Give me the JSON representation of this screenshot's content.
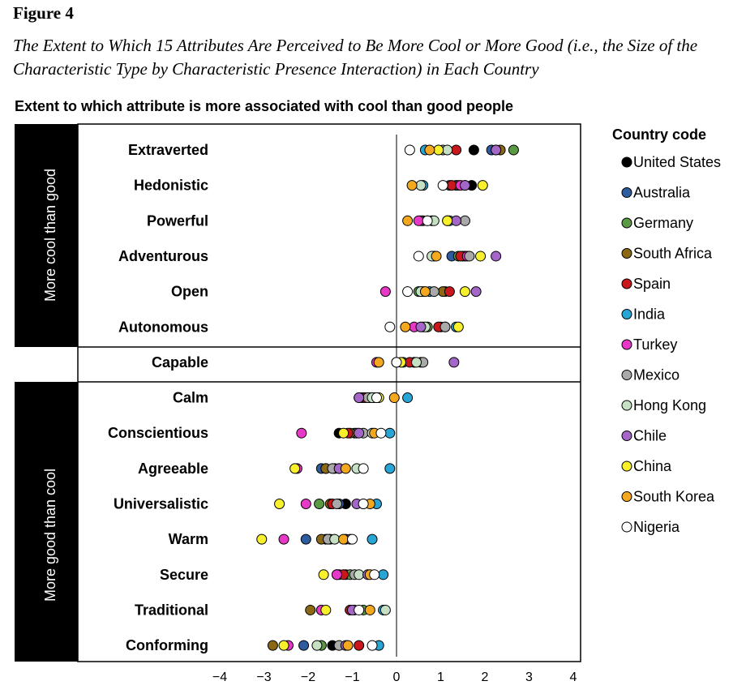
{
  "figure": {
    "label": "Figure 4",
    "caption": "The Extent to Which 15 Attributes Are Perceived to Be More Cool or More Good (i.e., the Size of the Characteristic Type by Characteristic Presence Interaction) in Each Country"
  },
  "chart_data": {
    "type": "scatter",
    "title": "Extent to which attribute is more associated with cool than good people",
    "xlim": [
      -4,
      4
    ],
    "x_ticks": [
      "−4",
      "−3",
      "−2",
      "−1",
      "0",
      "1",
      "2",
      "3",
      "4"
    ],
    "x_tick_values": [
      -4,
      -3,
      -2,
      -1,
      0,
      1,
      2,
      3,
      4
    ],
    "group_labels": [
      "More cool  than good",
      "More good than cool"
    ],
    "categories": [
      "Extraverted",
      "Hedonistic",
      "Powerful",
      "Adventurous",
      "Open",
      "Autonomous",
      "Capable",
      "Calm",
      "Conscientious",
      "Agreeable",
      "Universalistic",
      "Warm",
      "Secure",
      "Traditional",
      "Conforming"
    ],
    "legend_title": "Country code",
    "legend_position": "right",
    "series": [
      {
        "name": "United States",
        "color": "#000000",
        "values": [
          1.75,
          1.7,
          0.7,
          1.55,
          1.1,
          1.0,
          0.0,
          -0.5,
          -1.3,
          -1.3,
          -1.15,
          -1.6,
          -1.3,
          -1.7,
          -1.45
        ]
      },
      {
        "name": "Australia",
        "color": "#2e5c9e",
        "values": [
          2.15,
          1.2,
          0.6,
          1.25,
          0.6,
          1.1,
          0.4,
          -0.8,
          -0.95,
          -1.7,
          -1.3,
          -2.05,
          -1.15,
          -1.05,
          -2.1
        ]
      },
      {
        "name": "Germany",
        "color": "#5b9a44",
        "values": [
          2.65,
          1.35,
          0.8,
          1.4,
          0.5,
          0.7,
          0.4,
          -0.6,
          -0.9,
          -1.6,
          -1.75,
          -1.5,
          -1.05,
          -0.75,
          -1.7
        ]
      },
      {
        "name": "South Africa",
        "color": "#8b6914",
        "values": [
          2.35,
          1.4,
          0.55,
          1.5,
          1.05,
          0.6,
          0.15,
          -0.75,
          -1.05,
          -1.6,
          -1.5,
          -1.7,
          -1.35,
          -1.95,
          -2.8
        ]
      },
      {
        "name": "Spain",
        "color": "#c8171d",
        "values": [
          1.35,
          1.25,
          1.15,
          1.45,
          1.2,
          0.95,
          0.3,
          -0.7,
          -1.1,
          -1.4,
          -1.45,
          -1.15,
          -1.2,
          -1.05,
          -0.85
        ]
      },
      {
        "name": "India",
        "color": "#27a6d6",
        "values": [
          0.65,
          0.6,
          1.2,
          0.85,
          0.75,
          1.35,
          0.55,
          0.25,
          -0.15,
          -0.15,
          -0.45,
          -0.55,
          -0.3,
          -0.3,
          -0.4
        ]
      },
      {
        "name": "Turkey",
        "color": "#e838c8",
        "values": [
          2.25,
          1.45,
          0.5,
          1.6,
          -0.25,
          0.4,
          -0.45,
          -0.85,
          -2.15,
          -2.25,
          -2.05,
          -2.55,
          -1.35,
          -1.7,
          -2.45
        ]
      },
      {
        "name": "Mexico",
        "color": "#a9a9a9",
        "values": [
          1.05,
          1.55,
          1.55,
          1.65,
          0.85,
          1.1,
          0.6,
          -0.65,
          -0.75,
          -1.45,
          -1.35,
          -1.55,
          -0.95,
          -0.95,
          -1.3
        ]
      },
      {
        "name": "Hong Kong",
        "color": "#c5e0c3",
        "values": [
          1.15,
          0.55,
          0.85,
          0.8,
          0.55,
          0.65,
          0.45,
          -0.55,
          -0.55,
          -0.9,
          -0.75,
          -1.4,
          -0.85,
          -0.25,
          -1.8
        ]
      },
      {
        "name": "Chile",
        "color": "#a467c8",
        "values": [
          2.25,
          1.55,
          1.35,
          2.25,
          1.8,
          0.55,
          1.3,
          -0.85,
          -0.85,
          -1.3,
          -0.9,
          -1.05,
          -0.65,
          -1.0,
          -1.15
        ]
      },
      {
        "name": "China",
        "color": "#f7f02a",
        "values": [
          0.95,
          1.95,
          1.15,
          1.9,
          1.55,
          1.4,
          0.1,
          -0.4,
          -1.2,
          -2.3,
          -2.65,
          -3.05,
          -1.65,
          -1.6,
          -2.55
        ]
      },
      {
        "name": "South Korea",
        "color": "#f3a81e",
        "values": [
          0.75,
          0.35,
          0.25,
          0.9,
          0.65,
          0.2,
          -0.4,
          -0.05,
          -0.5,
          -1.15,
          -0.6,
          -1.2,
          -0.6,
          -0.6,
          -1.1
        ]
      },
      {
        "name": "Nigeria",
        "color": "#ffffff",
        "values": [
          0.3,
          1.05,
          0.7,
          0.5,
          0.25,
          -0.15,
          0.0,
          -0.45,
          -0.35,
          -0.75,
          -0.75,
          -1.0,
          -0.5,
          -0.85,
          -0.55
        ]
      }
    ]
  }
}
